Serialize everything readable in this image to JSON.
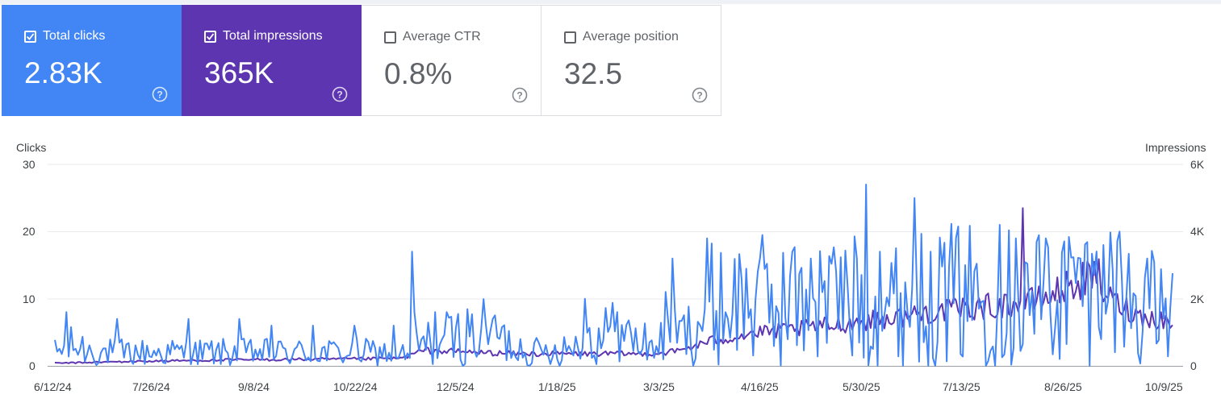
{
  "cards": [
    {
      "label": "Total clicks",
      "value": "2.83K",
      "checked": true,
      "color": "#4285f4",
      "help_icon": "help-circle-icon"
    },
    {
      "label": "Total impressions",
      "value": "365K",
      "checked": true,
      "color": "#5e35b1",
      "help_icon": "help-circle-icon"
    },
    {
      "label": "Average CTR",
      "value": "0.8%",
      "checked": false,
      "color": "#ffffff",
      "help_icon": "help-circle-icon"
    },
    {
      "label": "Average position",
      "value": "32.5",
      "checked": false,
      "color": "#ffffff",
      "help_icon": "help-circle-icon"
    }
  ],
  "chart_data": {
    "type": "line",
    "title": "",
    "ylabel_left": "Clicks",
    "ylabel_right": "Impressions",
    "y_left_ticks": [
      "30",
      "20",
      "10",
      "0"
    ],
    "y_right_ticks": [
      "6K",
      "4K",
      "2K",
      "0"
    ],
    "ylim_left": [
      0,
      30
    ],
    "ylim_right": [
      0,
      6000
    ],
    "x_tick_labels": [
      "6/12/24",
      "7/26/24",
      "9/8/24",
      "10/22/24",
      "12/5/24",
      "1/18/25",
      "3/3/25",
      "4/16/25",
      "5/30/25",
      "7/13/25",
      "8/26/25",
      "10/9/25"
    ],
    "x_tick_days": [
      0,
      44,
      88,
      132,
      176,
      220,
      264,
      308,
      352,
      396,
      440,
      484
    ],
    "x_range_days": [
      0,
      485
    ],
    "grid": true,
    "series": [
      {
        "name": "Clicks",
        "axis": "left",
        "color": "#4285f4",
        "knots": [
          [
            0,
            2
          ],
          [
            8,
            3
          ],
          [
            20,
            2
          ],
          [
            40,
            2
          ],
          [
            60,
            2
          ],
          [
            80,
            2
          ],
          [
            100,
            2
          ],
          [
            120,
            2
          ],
          [
            150,
            2
          ],
          [
            154,
            1
          ],
          [
            155,
            6
          ],
          [
            157,
            3
          ],
          [
            170,
            4
          ],
          [
            185,
            5
          ],
          [
            200,
            3
          ],
          [
            210,
            2
          ],
          [
            225,
            3
          ],
          [
            240,
            5
          ],
          [
            260,
            3
          ],
          [
            275,
            5
          ],
          [
            285,
            9
          ],
          [
            300,
            10
          ],
          [
            320,
            9
          ],
          [
            340,
            10
          ],
          [
            360,
            9
          ],
          [
            380,
            10
          ],
          [
            400,
            11
          ],
          [
            420,
            10
          ],
          [
            440,
            11
          ],
          [
            460,
            11
          ],
          [
            470,
            9
          ],
          [
            480,
            8
          ],
          [
            485,
            8
          ]
        ],
        "peaks": [
          [
            5,
            8
          ],
          [
            27,
            7
          ],
          [
            58,
            7
          ],
          [
            80,
            7
          ],
          [
            94,
            6
          ],
          [
            112,
            6
          ],
          [
            130,
            6
          ],
          [
            147,
            6
          ],
          [
            155,
            17
          ],
          [
            165,
            8
          ],
          [
            170,
            8
          ],
          [
            190,
            7
          ],
          [
            230,
            10
          ],
          [
            244,
            8
          ],
          [
            265,
            11
          ],
          [
            268,
            16
          ],
          [
            283,
            19
          ],
          [
            305,
            14
          ],
          [
            320,
            17
          ],
          [
            328,
            16
          ],
          [
            339,
            14
          ],
          [
            348,
            16
          ],
          [
            352,
            27
          ],
          [
            358,
            17
          ],
          [
            373,
            25
          ],
          [
            380,
            17
          ],
          [
            395,
            15
          ],
          [
            410,
            21
          ],
          [
            417,
            19
          ],
          [
            430,
            19
          ],
          [
            445,
            16
          ],
          [
            455,
            18
          ],
          [
            462,
            20
          ],
          [
            474,
            16
          ]
        ]
      },
      {
        "name": "Impressions",
        "axis": "right",
        "color": "#5e35b1",
        "knots": [
          [
            0,
            80
          ],
          [
            40,
            140
          ],
          [
            80,
            180
          ],
          [
            120,
            200
          ],
          [
            150,
            220
          ],
          [
            160,
            460
          ],
          [
            200,
            360
          ],
          [
            240,
            360
          ],
          [
            260,
            360
          ],
          [
            270,
            440
          ],
          [
            285,
            740
          ],
          [
            300,
            940
          ],
          [
            320,
            1080
          ],
          [
            340,
            1240
          ],
          [
            360,
            1400
          ],
          [
            380,
            1600
          ],
          [
            400,
            1740
          ],
          [
            420,
            1860
          ],
          [
            430,
            2020
          ],
          [
            440,
            2380
          ],
          [
            450,
            2640
          ],
          [
            458,
            2000
          ],
          [
            470,
            1500
          ],
          [
            485,
            1300
          ]
        ],
        "peaks": [
          [
            420,
            4700
          ],
          [
            453,
            3180
          ]
        ]
      }
    ]
  }
}
